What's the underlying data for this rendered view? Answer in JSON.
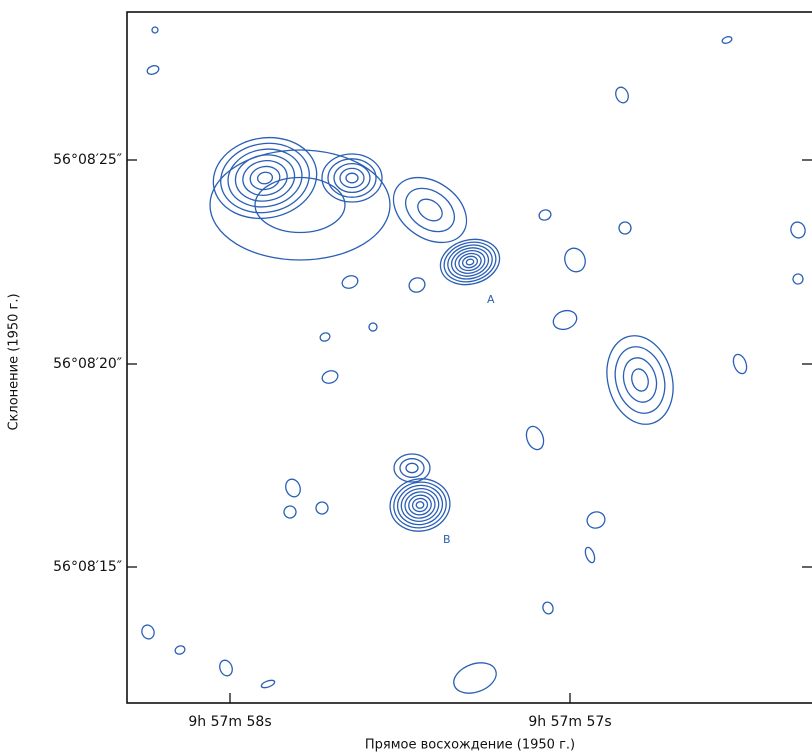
{
  "figure": {
    "y_axis_label": "Склонение (1950 г.)",
    "x_axis_label": "Прямое восхождение (1950 г.)",
    "y_tick_labels": [
      "56°08′25″",
      "56°08′20″",
      "56°08′15″"
    ],
    "x_tick_labels": [
      "9h 57m 58s",
      "9h 57m 57s"
    ],
    "source_labels": [
      "A",
      "B"
    ]
  }
}
